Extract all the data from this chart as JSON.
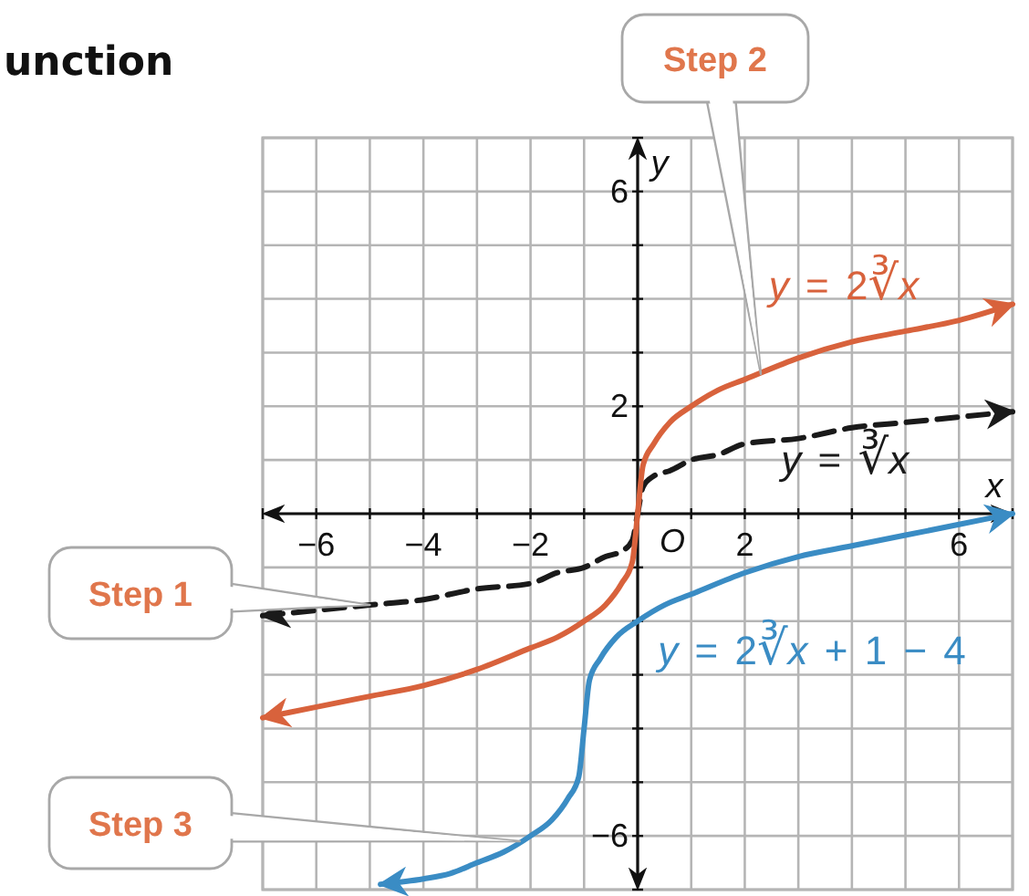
{
  "chart_data": {
    "type": "line",
    "title": "unction",
    "xlabel": "x",
    "ylabel": "y",
    "xlim": [
      -7,
      7
    ],
    "ylim": [
      -7,
      7
    ],
    "xticks": [
      {
        "value": -7,
        "label": null
      },
      -6,
      {
        "value": -5,
        "label": null
      },
      -4,
      {
        "value": -3,
        "label": null
      },
      -2,
      {
        "value": -1,
        "label": null
      },
      {
        "value": 0,
        "label": null
      },
      {
        "value": 1,
        "label": null
      },
      2,
      {
        "value": 3,
        "label": null
      },
      {
        "value": 4,
        "label": null
      },
      {
        "value": 5,
        "label": null
      },
      6,
      {
        "value": 7,
        "label": null
      }
    ],
    "yticks": [
      {
        "value": -7,
        "label": null
      },
      -6,
      {
        "value": -5,
        "label": null
      },
      {
        "value": -4,
        "label": null
      },
      {
        "value": -3,
        "label": null
      },
      {
        "value": -2,
        "label": null
      },
      {
        "value": -1,
        "label": null
      },
      {
        "value": 0,
        "label": null
      },
      {
        "value": 1,
        "label": null
      },
      2,
      {
        "value": 3,
        "label": null
      },
      {
        "value": 4,
        "label": null
      },
      {
        "value": 5,
        "label": null
      },
      6,
      {
        "value": 7,
        "label": null
      }
    ],
    "grid": true,
    "series": [
      {
        "name": "y = ∛x",
        "color": "#1a1a1a",
        "line_style": "dashed",
        "x": [
          -7,
          -6,
          -5,
          -4,
          -3,
          -2,
          -1.5,
          -1,
          -0.6,
          -0.3,
          -0.1,
          0,
          0.1,
          0.3,
          0.6,
          1,
          1.5,
          2,
          3,
          4,
          5,
          6,
          7
        ],
        "values": [
          -1.9,
          -1.8,
          -1.7,
          -1.6,
          -1.4,
          -1.3,
          -1.1,
          -1,
          -0.8,
          -0.7,
          -0.5,
          0,
          0.5,
          0.7,
          0.8,
          1,
          1.1,
          1.3,
          1.4,
          1.6,
          1.7,
          1.8,
          1.9
        ]
      },
      {
        "name": "y = 2∛x",
        "color": "#d8623c",
        "line_style": "solid",
        "x": [
          -7,
          -6,
          -5,
          -4,
          -3,
          -2,
          -1.5,
          -1,
          -0.6,
          -0.3,
          -0.1,
          0,
          0.1,
          0.3,
          0.6,
          1,
          1.5,
          2,
          3,
          4,
          5,
          6,
          7
        ],
        "values": [
          -3.8,
          -3.6,
          -3.4,
          -3.2,
          -2.9,
          -2.5,
          -2.3,
          -2,
          -1.7,
          -1.3,
          -0.9,
          0,
          0.9,
          1.3,
          1.7,
          2,
          2.3,
          2.5,
          2.9,
          3.2,
          3.4,
          3.6,
          3.9
        ]
      },
      {
        "name": "y = 2∛x + 1 − 4",
        "color": "#3a8cc4",
        "line_style": "solid",
        "x": [
          -4.8,
          -4,
          -3.5,
          -3,
          -2.5,
          -2,
          -1.6,
          -1.3,
          -1.1,
          -1,
          -0.9,
          -0.7,
          -0.4,
          0,
          0.5,
          1,
          2,
          3,
          4,
          5,
          6,
          7
        ],
        "values": [
          -6.9,
          -6.8,
          -6.7,
          -6.5,
          -6.3,
          -6,
          -5.7,
          -5.3,
          -4.9,
          -4,
          -3.1,
          -2.7,
          -2.3,
          -2,
          -1.7,
          -1.5,
          -1.1,
          -0.8,
          -0.6,
          -0.4,
          -0.2,
          0
        ]
      }
    ],
    "annotations": [
      {
        "text": "O",
        "x": 0,
        "y": 0
      },
      {
        "text": "Step 1",
        "x": -5,
        "y": -1.7
      },
      {
        "text": "Step 2",
        "x": 2.3,
        "y": 2.6
      },
      {
        "text": "Step 3",
        "x": -2.2,
        "y": -6.1
      }
    ]
  }
}
